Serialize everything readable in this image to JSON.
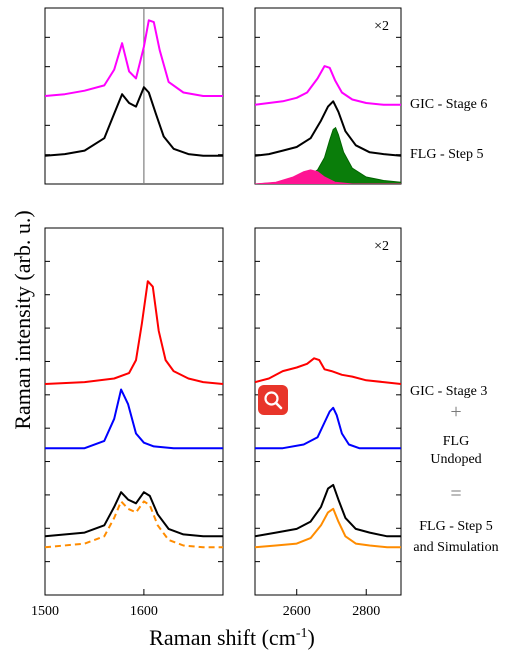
{
  "chart_data": {
    "type": "line",
    "ylabel": "Raman intensity (arb. u.)",
    "xlabel": "Raman shift (cm",
    "xlabel_sup": "-1",
    "xlabel_close": ")",
    "panels": [
      {
        "id": "top-left",
        "xlim": [
          1500,
          1680
        ],
        "vline": 1600,
        "series": [
          {
            "name": "GIC - Stage 6",
            "color": "#ff00ff",
            "x": [
              1500,
              1520,
              1540,
              1560,
              1570,
              1578,
              1585,
              1592,
              1600,
              1605,
              1610,
              1616,
              1625,
              1640,
              1660,
              1680
            ],
            "y": [
              0.5,
              0.51,
              0.53,
              0.56,
              0.65,
              0.8,
              0.64,
              0.6,
              0.78,
              0.93,
              0.92,
              0.76,
              0.58,
              0.52,
              0.5,
              0.5
            ]
          },
          {
            "name": "FLG - Step 5",
            "color": "#000000",
            "x": [
              1500,
              1520,
              1540,
              1560,
              1570,
              1578,
              1585,
              1592,
              1600,
              1605,
              1612,
              1620,
              1630,
              1645,
              1660,
              1680
            ],
            "y": [
              0.16,
              0.17,
              0.19,
              0.26,
              0.4,
              0.51,
              0.46,
              0.44,
              0.55,
              0.52,
              0.4,
              0.27,
              0.2,
              0.17,
              0.16,
              0.16
            ]
          }
        ]
      },
      {
        "id": "top-right",
        "xlim": [
          2480,
          2900
        ],
        "annotation": "×2",
        "series": [
          {
            "name": "GIC - Stage 6",
            "color": "#ff00ff",
            "x": [
              2480,
              2520,
              2560,
              2600,
              2630,
              2660,
              2680,
              2695,
              2710,
              2730,
              2760,
              2800,
              2850,
              2900
            ],
            "y": [
              0.45,
              0.46,
              0.47,
              0.49,
              0.52,
              0.6,
              0.67,
              0.66,
              0.59,
              0.52,
              0.48,
              0.46,
              0.45,
              0.45
            ]
          },
          {
            "name": "FLG - Step 5",
            "color": "#000000",
            "x": [
              2480,
              2520,
              2560,
              2600,
              2640,
              2670,
              2690,
              2705,
              2720,
              2740,
              2770,
              2810,
              2850,
              2900
            ],
            "y": [
              0.16,
              0.17,
              0.19,
              0.21,
              0.26,
              0.36,
              0.44,
              0.47,
              0.41,
              0.3,
              0.22,
              0.18,
              0.17,
              0.16
            ]
          },
          {
            "name": "",
            "color": "#006400",
            "fill": "#0a7d0a",
            "x": [
              2480,
              2560,
              2620,
              2660,
              2680,
              2695,
              2705,
              2712,
              2720,
              2735,
              2760,
              2800,
              2850,
              2900
            ],
            "y": [
              0.0,
              0.01,
              0.03,
              0.08,
              0.15,
              0.25,
              0.31,
              0.32,
              0.28,
              0.18,
              0.09,
              0.04,
              0.02,
              0.01
            ]
          },
          {
            "name": "",
            "color": "#ff1493",
            "fill": "#ff1493",
            "x": [
              2480,
              2540,
              2590,
              2620,
              2640,
              2660,
              2680,
              2710,
              2760,
              2900
            ],
            "y": [
              0.0,
              0.01,
              0.04,
              0.07,
              0.08,
              0.07,
              0.04,
              0.01,
              0.0,
              0.0
            ]
          }
        ]
      },
      {
        "id": "bottom-left",
        "xlim": [
          1500,
          1680
        ],
        "xticks": [
          1500,
          1600
        ],
        "series": [
          {
            "name": "GIC - Stage 3",
            "color": "#ff0000",
            "x": [
              1500,
              1540,
              1570,
              1585,
              1592,
              1598,
              1604,
              1609,
              1615,
              1622,
              1630,
              1645,
              1660,
              1680
            ],
            "y": [
              0.575,
              0.58,
              0.59,
              0.605,
              0.64,
              0.74,
              0.855,
              0.84,
              0.72,
              0.64,
              0.61,
              0.59,
              0.58,
              0.575
            ]
          },
          {
            "name": "FLG Undoped",
            "color": "#0000ff",
            "x": [
              1500,
              1540,
              1560,
              1570,
              1577,
              1584,
              1592,
              1600,
              1610,
              1630,
              1660,
              1680
            ],
            "y": [
              0.4,
              0.4,
              0.42,
              0.48,
              0.56,
              0.52,
              0.44,
              0.415,
              0.405,
              0.4,
              0.4,
              0.4
            ]
          },
          {
            "name": "FLG - Step 5",
            "color": "#000000",
            "x": [
              1500,
              1540,
              1560,
              1570,
              1577,
              1584,
              1592,
              1600,
              1606,
              1614,
              1625,
              1640,
              1660,
              1680
            ],
            "y": [
              0.16,
              0.17,
              0.19,
              0.24,
              0.28,
              0.26,
              0.25,
              0.28,
              0.27,
              0.22,
              0.18,
              0.165,
              0.16,
              0.16
            ]
          },
          {
            "name": "Simulation",
            "color": "#ff8c00",
            "dashed": true,
            "x": [
              1500,
              1540,
              1560,
              1570,
              1577,
              1584,
              1592,
              1600,
              1606,
              1614,
              1625,
              1640,
              1660,
              1680
            ],
            "y": [
              0.13,
              0.14,
              0.16,
              0.21,
              0.255,
              0.235,
              0.225,
              0.255,
              0.245,
              0.19,
              0.15,
              0.135,
              0.13,
              0.13
            ]
          }
        ]
      },
      {
        "id": "bottom-right",
        "xlim": [
          2480,
          2900
        ],
        "xticks": [
          2600,
          2800
        ],
        "annotation": "×2",
        "series": [
          {
            "name": "GIC - Stage 3",
            "color": "#ff0000",
            "x": [
              2480,
              2520,
              2560,
              2600,
              2630,
              2650,
              2665,
              2680,
              2700,
              2730,
              2760,
              2800,
              2850,
              2900
            ],
            "y": [
              0.58,
              0.59,
              0.61,
              0.62,
              0.63,
              0.645,
              0.64,
              0.615,
              0.61,
              0.6,
              0.595,
              0.585,
              0.58,
              0.575
            ]
          },
          {
            "name": "FLG Undoped",
            "color": "#0000ff",
            "x": [
              2480,
              2560,
              2620,
              2660,
              2680,
              2695,
              2705,
              2715,
              2730,
              2750,
              2780,
              2820,
              2900
            ],
            "y": [
              0.4,
              0.4,
              0.41,
              0.43,
              0.47,
              0.5,
              0.51,
              0.49,
              0.44,
              0.41,
              0.4,
              0.4,
              0.4
            ]
          },
          {
            "name": "FLG - Step 5",
            "color": "#000000",
            "x": [
              2480,
              2540,
              2600,
              2640,
              2670,
              2690,
              2705,
              2720,
              2740,
              2770,
              2810,
              2860,
              2900
            ],
            "y": [
              0.16,
              0.17,
              0.18,
              0.2,
              0.24,
              0.29,
              0.3,
              0.26,
              0.21,
              0.18,
              0.17,
              0.16,
              0.16
            ]
          },
          {
            "name": "Simulation",
            "color": "#ff8c00",
            "x": [
              2480,
              2540,
              2600,
              2640,
              2670,
              2690,
              2705,
              2720,
              2740,
              2770,
              2810,
              2860,
              2900
            ],
            "y": [
              0.13,
              0.135,
              0.14,
              0.155,
              0.19,
              0.225,
              0.235,
              0.2,
              0.16,
              0.14,
              0.135,
              0.13,
              0.13
            ]
          }
        ]
      }
    ],
    "annotations": {
      "top": [
        "GIC - Stage 6",
        "FLG - Step 5"
      ],
      "bottom": {
        "gic": "GIC - Stage 3",
        "plus": "+",
        "flg1": "FLG",
        "flg2": "Undoped",
        "equals": "=",
        "sim1": "FLG - Step 5",
        "sim2": "and Simulation"
      }
    },
    "colors": {
      "zoom_button": "#e8352a"
    }
  },
  "zoom_button": {
    "icon": "search-icon"
  }
}
